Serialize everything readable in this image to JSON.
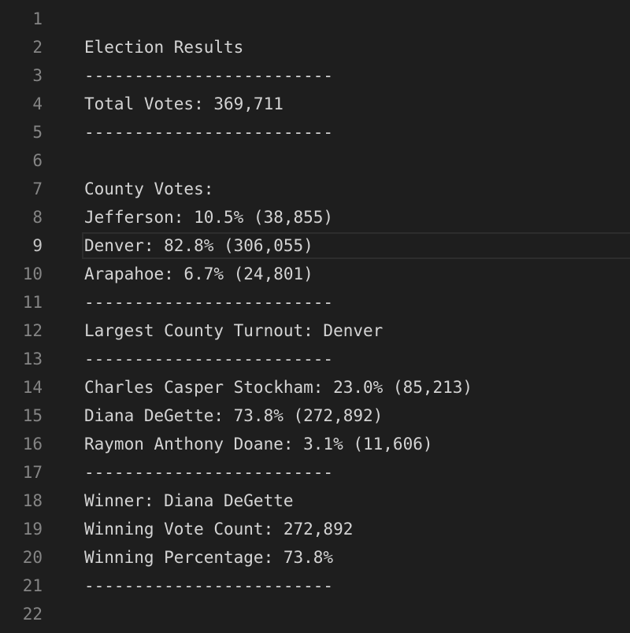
{
  "editor": {
    "current_line": 9,
    "lines": [
      {
        "num": "1",
        "text": ""
      },
      {
        "num": "2",
        "text": "Election Results"
      },
      {
        "num": "3",
        "text": "-------------------------"
      },
      {
        "num": "4",
        "text": "Total Votes: 369,711"
      },
      {
        "num": "5",
        "text": "-------------------------"
      },
      {
        "num": "6",
        "text": ""
      },
      {
        "num": "7",
        "text": "County Votes:"
      },
      {
        "num": "8",
        "text": "Jefferson: 10.5% (38,855)"
      },
      {
        "num": "9",
        "text": "Denver: 82.8% (306,055)"
      },
      {
        "num": "10",
        "text": "Arapahoe: 6.7% (24,801)"
      },
      {
        "num": "11",
        "text": "-------------------------"
      },
      {
        "num": "12",
        "text": "Largest County Turnout: Denver"
      },
      {
        "num": "13",
        "text": "-------------------------"
      },
      {
        "num": "14",
        "text": "Charles Casper Stockham: 23.0% (85,213)"
      },
      {
        "num": "15",
        "text": "Diana DeGette: 73.8% (272,892)"
      },
      {
        "num": "16",
        "text": "Raymon Anthony Doane: 3.1% (11,606)"
      },
      {
        "num": "17",
        "text": "-------------------------"
      },
      {
        "num": "18",
        "text": "Winner: Diana DeGette"
      },
      {
        "num": "19",
        "text": "Winning Vote Count: 272,892"
      },
      {
        "num": "20",
        "text": "Winning Percentage: 73.8%"
      },
      {
        "num": "21",
        "text": "-------------------------"
      },
      {
        "num": "22",
        "text": ""
      }
    ]
  }
}
